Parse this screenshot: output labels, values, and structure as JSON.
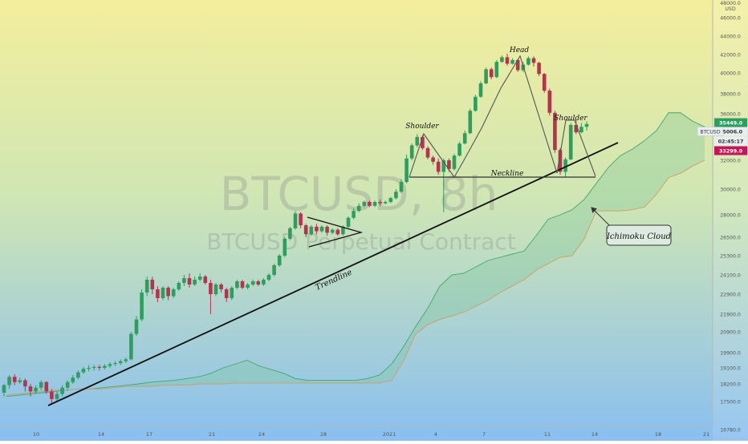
{
  "chart_data": {
    "type": "candlestick",
    "symbol": "BTCUSD",
    "watermark_symbol": "BTCUSD, 8h",
    "watermark_subtitle": "BTCUSD Perpetual Contract",
    "currency": "USD",
    "y_max_label": "48000.0",
    "ylim": [
      16000,
      48000
    ],
    "y_ticks": [
      "46000.0",
      "44000.0",
      "42000.0",
      "40000.0",
      "38000.0",
      "36000.0",
      "35006.0",
      "32000.0",
      "30000.0",
      "28000.0",
      "26500.0",
      "25300.0",
      "24100.0",
      "22900.0",
      "21900.0",
      "20900.0",
      "19900.0",
      "19100.0",
      "18200.0",
      "17500.0",
      "16780.0"
    ],
    "x_ticks": [
      "10",
      "14",
      "17",
      "21",
      "24",
      "28",
      "2021",
      "4",
      "7",
      "11",
      "14",
      "18",
      "21"
    ],
    "price_labels": [
      {
        "text": "35449.0",
        "color": "#2e9e5f"
      },
      {
        "text": "BTCUSD",
        "color": "#e9eef2"
      },
      {
        "text": "35006.0",
        "color": "#e9eef2"
      },
      {
        "text": "02:45:17",
        "color": "#e9eef2"
      },
      {
        "text": "33299.0",
        "color": "#c2185b"
      }
    ],
    "annotations": [
      {
        "text": "Head"
      },
      {
        "text": "Shoulder"
      },
      {
        "text": "Shoulder"
      },
      {
        "text": "Neckline"
      },
      {
        "text": "Trendline"
      },
      {
        "text": "Ichimoku Cloud"
      }
    ],
    "candles": [
      [
        17850,
        18150,
        17700,
        18200
      ],
      [
        18150,
        18600,
        18000,
        18700
      ],
      [
        18600,
        18300,
        18150,
        18750
      ],
      [
        18300,
        18400,
        18200,
        18550
      ],
      [
        18400,
        18100,
        17900,
        18500
      ],
      [
        18100,
        17900,
        17700,
        18200
      ],
      [
        17900,
        18050,
        17800,
        18150
      ],
      [
        18050,
        18300,
        17950,
        18400
      ],
      [
        18300,
        17900,
        17800,
        18350
      ],
      [
        17900,
        17600,
        17450,
        18000
      ],
      [
        17600,
        17800,
        17500,
        17900
      ],
      [
        17800,
        18050,
        17700,
        18150
      ],
      [
        18050,
        18300,
        17950,
        18400
      ],
      [
        18300,
        18550,
        18200,
        18700
      ],
      [
        18550,
        18850,
        18450,
        18950
      ],
      [
        18850,
        19050,
        18750,
        19150
      ],
      [
        19050,
        19100,
        18900,
        19250
      ],
      [
        19100,
        19150,
        18950,
        19250
      ],
      [
        19150,
        19100,
        18950,
        19250
      ],
      [
        19100,
        19200,
        19000,
        19300
      ],
      [
        19200,
        19300,
        19100,
        19400
      ],
      [
        19300,
        19350,
        19200,
        19450
      ],
      [
        19350,
        19450,
        19250,
        19550
      ],
      [
        19450,
        19550,
        19350,
        19650
      ],
      [
        19550,
        20800,
        19500,
        20900
      ],
      [
        20800,
        21600,
        20700,
        21800
      ],
      [
        21600,
        23000,
        21500,
        23200
      ],
      [
        23000,
        23800,
        22800,
        24000
      ],
      [
        23800,
        23200,
        22900,
        24000
      ],
      [
        23200,
        22700,
        22500,
        23400
      ],
      [
        22700,
        23300,
        22600,
        23400
      ],
      [
        23300,
        22800,
        22600,
        23400
      ],
      [
        22800,
        23200,
        22700,
        23300
      ],
      [
        23200,
        23600,
        23100,
        23700
      ],
      [
        23600,
        23900,
        23400,
        24100
      ],
      [
        23900,
        23500,
        23300,
        24200
      ],
      [
        23500,
        23800,
        23400,
        24000
      ],
      [
        23800,
        24000,
        23700,
        24200
      ],
      [
        24000,
        23600,
        23500,
        24100
      ],
      [
        23600,
        22900,
        21900,
        23800
      ],
      [
        22900,
        23500,
        22800,
        23600
      ],
      [
        23500,
        23200,
        23000,
        23600
      ],
      [
        23200,
        22700,
        22500,
        23300
      ],
      [
        22700,
        23300,
        22600,
        23400
      ],
      [
        23300,
        23700,
        23200,
        23800
      ],
      [
        23700,
        23300,
        23200,
        23800
      ],
      [
        23300,
        23500,
        23200,
        23600
      ],
      [
        23500,
        23700,
        23400,
        23800
      ],
      [
        23700,
        23500,
        23400,
        23800
      ],
      [
        23500,
        23800,
        23400,
        23900
      ],
      [
        23800,
        24100,
        23700,
        24200
      ],
      [
        24100,
        24700,
        24000,
        24800
      ],
      [
        24700,
        25300,
        24600,
        25400
      ],
      [
        25300,
        26400,
        25200,
        26500
      ],
      [
        26400,
        27100,
        26300,
        27200
      ],
      [
        27100,
        28100,
        27000,
        28300
      ],
      [
        28100,
        27300,
        27100,
        28200
      ],
      [
        27300,
        26700,
        26500,
        27400
      ],
      [
        26700,
        27200,
        26600,
        27300
      ],
      [
        27200,
        26900,
        26700,
        27400
      ],
      [
        26900,
        27200,
        26800,
        27300
      ],
      [
        27200,
        26800,
        26600,
        27300
      ],
      [
        26800,
        27000,
        26700,
        27100
      ],
      [
        27000,
        26700,
        26600,
        27100
      ],
      [
        26700,
        27200,
        26600,
        27300
      ],
      [
        27200,
        27800,
        27100,
        27900
      ],
      [
        27800,
        28300,
        27700,
        28500
      ],
      [
        28300,
        28700,
        28200,
        28900
      ],
      [
        28700,
        29000,
        28600,
        29100
      ],
      [
        29000,
        28700,
        28600,
        29100
      ],
      [
        28700,
        29000,
        28600,
        29100
      ],
      [
        29000,
        28900,
        28700,
        29200
      ],
      [
        28900,
        29000,
        28800,
        29100
      ],
      [
        29000,
        29300,
        28900,
        29400
      ],
      [
        29300,
        29800,
        29200,
        30000
      ],
      [
        29800,
        30500,
        29700,
        30700
      ],
      [
        30500,
        32200,
        30400,
        32600
      ],
      [
        32200,
        33600,
        32000,
        33800
      ],
      [
        33600,
        34500,
        33400,
        34800
      ],
      [
        34500,
        33300,
        33100,
        34700
      ],
      [
        33300,
        32300,
        32100,
        33500
      ],
      [
        32300,
        31900,
        31700,
        32500
      ],
      [
        31900,
        31200,
        31000,
        32200
      ],
      [
        31200,
        32000,
        28200,
        32200
      ],
      [
        32000,
        31400,
        31200,
        32200
      ],
      [
        31400,
        32500,
        31300,
        32700
      ],
      [
        32500,
        33800,
        32400,
        34000
      ],
      [
        33800,
        34900,
        33700,
        35100
      ],
      [
        34900,
        36300,
        34800,
        36500
      ],
      [
        36300,
        37700,
        36200,
        37900
      ],
      [
        37700,
        39000,
        37600,
        39200
      ],
      [
        39000,
        40400,
        38900,
        40600
      ],
      [
        40400,
        39600,
        39400,
        40600
      ],
      [
        39600,
        41200,
        39500,
        41400
      ],
      [
        41200,
        41700,
        41100,
        41900
      ],
      [
        41700,
        41000,
        40800,
        42100
      ],
      [
        41000,
        41400,
        40900,
        41600
      ],
      [
        41400,
        40300,
        40100,
        41500
      ],
      [
        40300,
        40900,
        40100,
        41200
      ],
      [
        40900,
        41600,
        40800,
        41800
      ],
      [
        41600,
        41100,
        40700,
        41800
      ],
      [
        41100,
        39900,
        39700,
        41200
      ],
      [
        39900,
        38300,
        38100,
        40000
      ],
      [
        38300,
        36100,
        35900,
        38500
      ],
      [
        36100,
        33100,
        32800,
        36300
      ],
      [
        33100,
        31200,
        31000,
        33300
      ],
      [
        31200,
        32100,
        30800,
        32300
      ],
      [
        32100,
        35400,
        32000,
        35500
      ],
      [
        35400,
        35000,
        34800,
        35700
      ],
      [
        35000,
        35300,
        34900,
        35500
      ],
      [
        35300,
        35450,
        35100,
        35600
      ]
    ],
    "cloud": {
      "span_a": [
        17700,
        17750,
        17800,
        17850,
        17900,
        17950,
        18000,
        18000,
        18050,
        18100,
        18150,
        18200,
        18300,
        18350,
        18400,
        18500,
        18600,
        18800,
        19100,
        19300,
        19500,
        19200,
        19000,
        18800,
        18500,
        18400,
        18400,
        18400,
        18400,
        18400,
        18500,
        18700,
        19300,
        20200,
        21200,
        22200,
        23400,
        24100,
        24200,
        24600,
        25000,
        25200,
        25400,
        25600,
        26600,
        27700,
        28000,
        28400,
        29200,
        30400,
        31500,
        32500,
        33200,
        34100,
        35100,
        36100,
        36100,
        35600,
        35300
      ],
      "span_b": [
        17750,
        17800,
        17850,
        17900,
        17950,
        17950,
        18000,
        18000,
        18000,
        18050,
        18100,
        18100,
        18100,
        18150,
        18150,
        18150,
        18200,
        18200,
        18200,
        18250,
        18250,
        18250,
        18250,
        18250,
        18250,
        18250,
        18250,
        18250,
        18250,
        18250,
        18250,
        18250,
        18400,
        19500,
        20800,
        21300,
        21600,
        21800,
        22000,
        22300,
        22600,
        23000,
        23400,
        23800,
        24400,
        24800,
        25200,
        25300,
        26400,
        28300,
        28300,
        28300,
        28400,
        28600,
        29600,
        30800,
        31100,
        31600,
        32000
      ]
    }
  }
}
